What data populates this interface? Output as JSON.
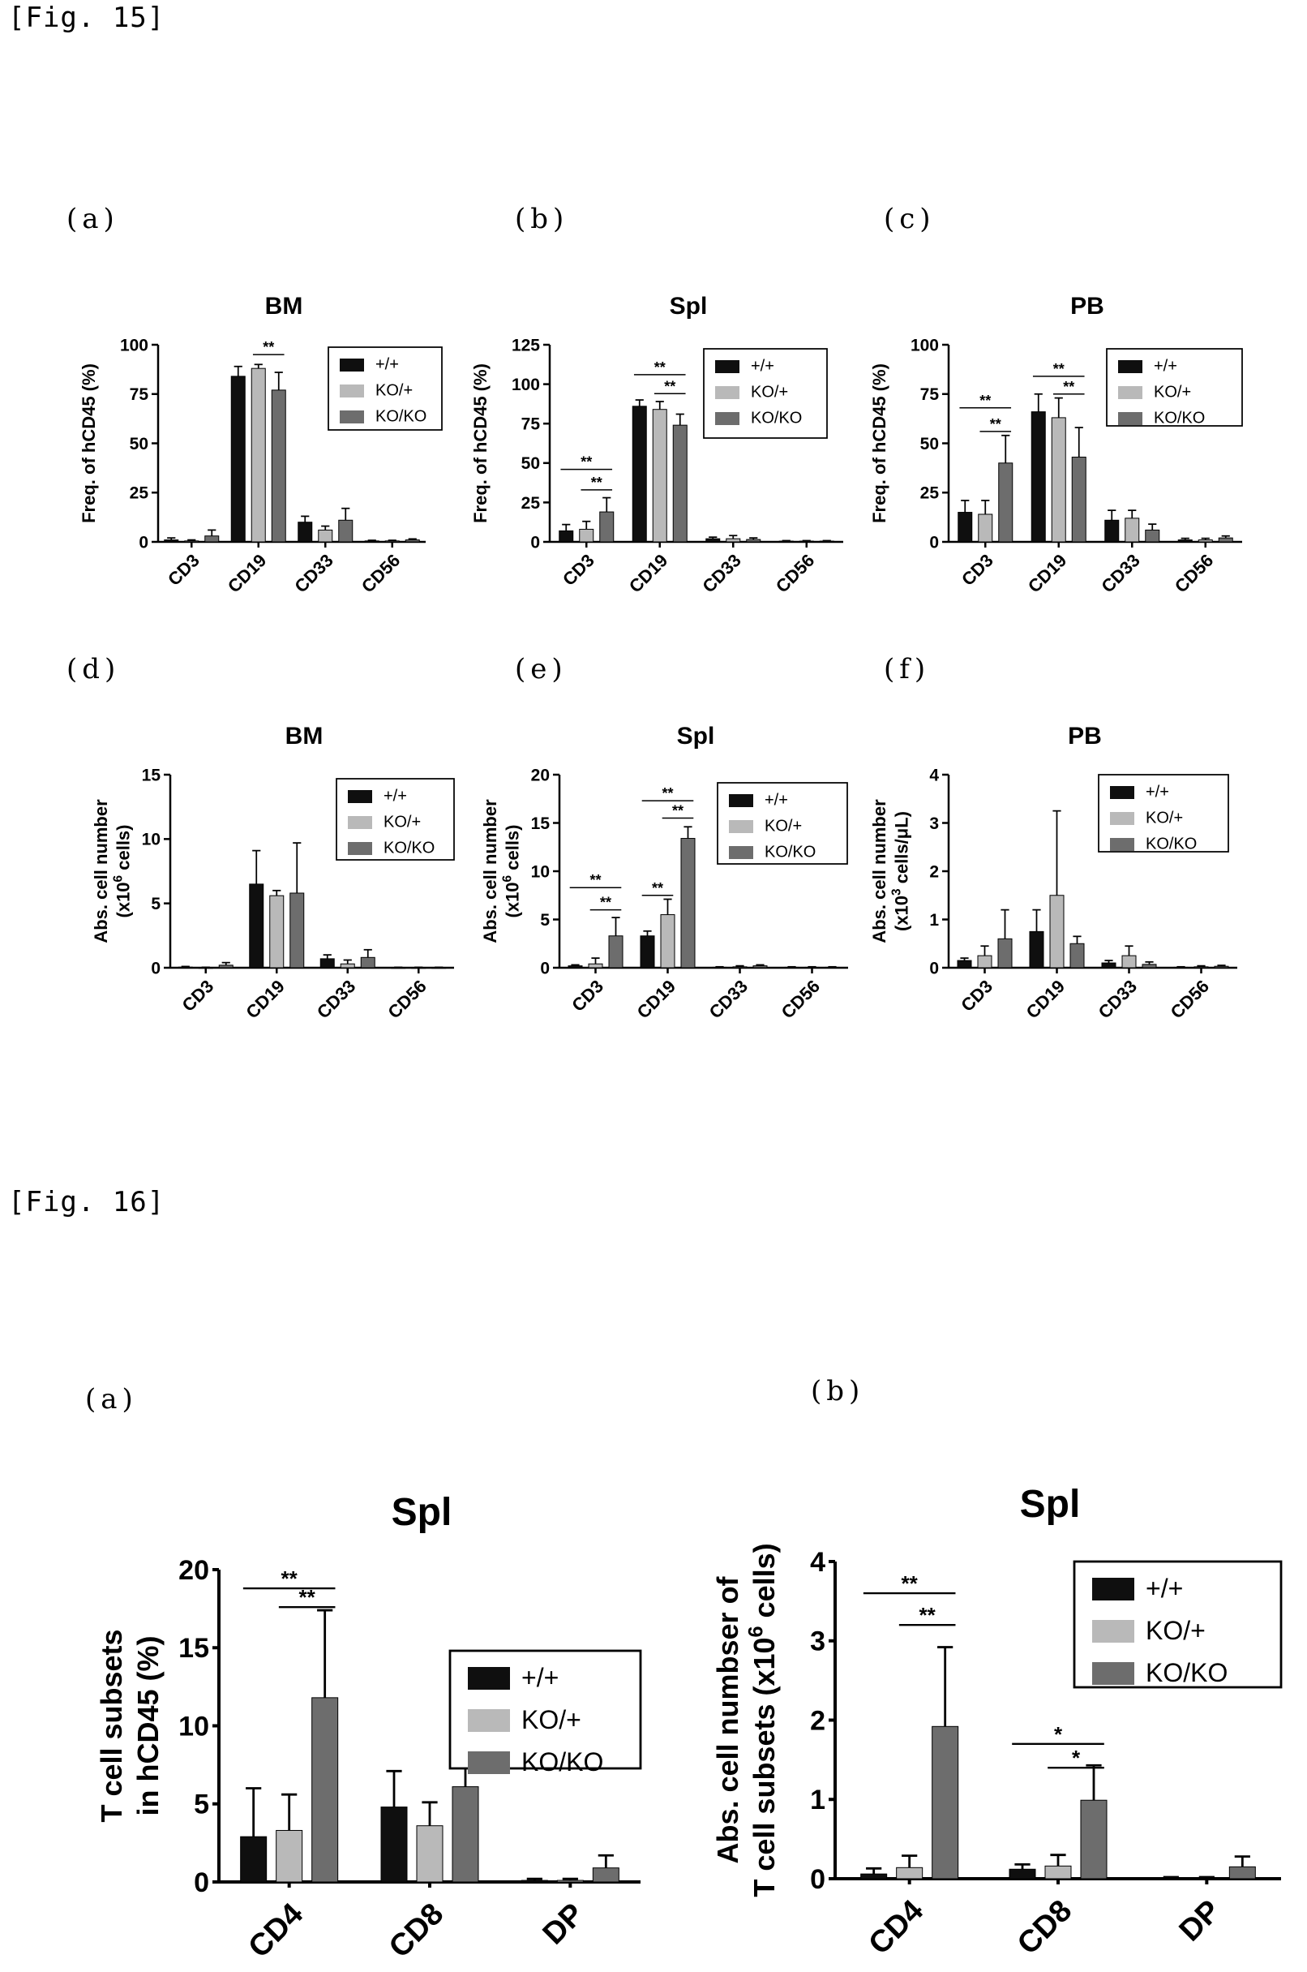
{
  "figures": [
    {
      "label": "[Fig. 15]",
      "panels": [
        {
          "letter": "(a)"
        },
        {
          "letter": "(b)"
        },
        {
          "letter": "(c)"
        },
        {
          "letter": "(d)"
        },
        {
          "letter": "(e)"
        },
        {
          "letter": "(f)"
        }
      ]
    },
    {
      "label": "[Fig. 16]",
      "panels": [
        {
          "letter": "(a)"
        },
        {
          "letter": "(b)"
        }
      ]
    }
  ],
  "colors": {
    "wt": "#0f0f0f",
    "het": "#b9b9b9",
    "ko": "#6d6d6d"
  },
  "chart_data": [
    {
      "type": "bar",
      "title": "BM",
      "ylabel": "Freq. of hCD45 (%)",
      "categories": [
        "CD3",
        "CD19",
        "CD33",
        "CD56"
      ],
      "ylim": [
        0,
        100
      ],
      "yticks": [
        "0",
        "25",
        "50",
        "75",
        "100"
      ],
      "legend": [
        "+/+",
        "KO/+",
        "KO/KO"
      ],
      "legend_position": "top-right",
      "series": [
        {
          "name": "+/+",
          "values": [
            1,
            84,
            10,
            0.5
          ],
          "errors": [
            1,
            5,
            3,
            0.3
          ]
        },
        {
          "name": "KO/+",
          "values": [
            0.5,
            88,
            6,
            0.5
          ],
          "errors": [
            0.5,
            2,
            2,
            0.3
          ]
        },
        {
          "name": "KO/KO",
          "values": [
            3,
            77,
            11,
            1
          ],
          "errors": [
            3,
            9,
            6,
            0.5
          ]
        }
      ],
      "significance": [
        {
          "category": 1,
          "from": 1,
          "to": 2,
          "y": 95,
          "label": "**"
        }
      ]
    },
    {
      "type": "bar",
      "title": "Spl",
      "ylabel": "Freq. of hCD45 (%)",
      "categories": [
        "CD3",
        "CD19",
        "CD33",
        "CD56"
      ],
      "ylim": [
        0,
        125
      ],
      "yticks": [
        "0",
        "25",
        "50",
        "75",
        "100",
        "125"
      ],
      "legend": [
        "+/+",
        "KO/+",
        "KO/KO"
      ],
      "legend_position": "top-right",
      "series": [
        {
          "name": "+/+",
          "values": [
            7,
            86,
            2,
            0.5
          ],
          "errors": [
            4,
            4,
            1,
            0.3
          ]
        },
        {
          "name": "KO/+",
          "values": [
            8,
            84,
            2,
            0.5
          ],
          "errors": [
            5,
            5,
            2,
            0.3
          ]
        },
        {
          "name": "KO/KO",
          "values": [
            19,
            74,
            1.5,
            0.5
          ],
          "errors": [
            9,
            7,
            1,
            0.3
          ]
        }
      ],
      "significance": [
        {
          "category": 0,
          "from": 0,
          "to": 2,
          "y": 46,
          "label": "**"
        },
        {
          "category": 0,
          "from": 1,
          "to": 2,
          "y": 33,
          "label": "**"
        },
        {
          "category": 1,
          "from": 0,
          "to": 2,
          "y": 106,
          "label": "**"
        },
        {
          "category": 1,
          "from": 1,
          "to": 2,
          "y": 94,
          "label": "**"
        }
      ]
    },
    {
      "type": "bar",
      "title": "PB",
      "ylabel": "Freq. of hCD45 (%)",
      "categories": [
        "CD3",
        "CD19",
        "CD33",
        "CD56"
      ],
      "ylim": [
        0,
        100
      ],
      "yticks": [
        "0",
        "25",
        "50",
        "75",
        "100"
      ],
      "legend": [
        "+/+",
        "KO/+",
        "KO/KO"
      ],
      "legend_position": "top-right",
      "series": [
        {
          "name": "+/+",
          "values": [
            15,
            66,
            11,
            1
          ],
          "errors": [
            6,
            9,
            5,
            0.8
          ]
        },
        {
          "name": "KO/+",
          "values": [
            14,
            63,
            12,
            1
          ],
          "errors": [
            7,
            10,
            4,
            0.8
          ]
        },
        {
          "name": "KO/KO",
          "values": [
            40,
            43,
            6,
            2
          ],
          "errors": [
            14,
            15,
            3,
            1
          ]
        }
      ],
      "significance": [
        {
          "category": 0,
          "from": 0,
          "to": 2,
          "y": 68,
          "label": "**"
        },
        {
          "category": 0,
          "from": 1,
          "to": 2,
          "y": 56,
          "label": "**"
        },
        {
          "category": 1,
          "from": 0,
          "to": 2,
          "y": 84,
          "label": "**"
        },
        {
          "category": 1,
          "from": 1,
          "to": 2,
          "y": 75,
          "label": "**"
        }
      ]
    },
    {
      "type": "bar",
      "title": "BM",
      "ylabel_lines": [
        "Abs. cell number",
        "(x10",
        "6",
        " cells)"
      ],
      "categories": [
        "CD3",
        "CD19",
        "CD33",
        "CD56"
      ],
      "ylim": [
        0,
        15
      ],
      "yticks": [
        "0",
        "5",
        "10",
        "15"
      ],
      "legend": [
        "+/+",
        "KO/+",
        "KO/KO"
      ],
      "legend_position": "top-right",
      "series": [
        {
          "name": "+/+",
          "values": [
            0.05,
            6.5,
            0.7,
            0.02
          ],
          "errors": [
            0.05,
            2.6,
            0.3,
            0.02
          ]
        },
        {
          "name": "KO/+",
          "values": [
            0.02,
            5.6,
            0.3,
            0.02
          ],
          "errors": [
            0.02,
            0.4,
            0.3,
            0.02
          ]
        },
        {
          "name": "KO/KO",
          "values": [
            0.2,
            5.8,
            0.8,
            0.02
          ],
          "errors": [
            0.2,
            3.9,
            0.6,
            0.02
          ]
        }
      ],
      "significance": []
    },
    {
      "type": "bar",
      "title": "Spl",
      "ylabel_lines": [
        "Abs. cell number",
        "(x10",
        "6",
        " cells)"
      ],
      "categories": [
        "CD3",
        "CD19",
        "CD33",
        "CD56"
      ],
      "ylim": [
        0,
        20
      ],
      "yticks": [
        "0",
        "5",
        "10",
        "15",
        "20"
      ],
      "legend": [
        "+/+",
        "KO/+",
        "KO/KO"
      ],
      "legend_position": "top-right",
      "series": [
        {
          "name": "+/+",
          "values": [
            0.2,
            3.3,
            0.05,
            0.05
          ],
          "errors": [
            0.1,
            0.5,
            0.05,
            0.05
          ]
        },
        {
          "name": "KO/+",
          "values": [
            0.4,
            5.5,
            0.1,
            0.05
          ],
          "errors": [
            0.6,
            1.6,
            0.1,
            0.05
          ]
        },
        {
          "name": "KO/KO",
          "values": [
            3.3,
            13.4,
            0.2,
            0.05
          ],
          "errors": [
            1.9,
            1.2,
            0.1,
            0.05
          ]
        }
      ],
      "significance": [
        {
          "category": 0,
          "from": 0,
          "to": 2,
          "y": 8.3,
          "label": "**"
        },
        {
          "category": 0,
          "from": 1,
          "to": 2,
          "y": 6.0,
          "label": "**"
        },
        {
          "category": 1,
          "from": 0,
          "to": 2,
          "y": 17.3,
          "label": "**"
        },
        {
          "category": 1,
          "from": 1,
          "to": 2,
          "y": 15.5,
          "label": "**"
        },
        {
          "category": 1,
          "from": 0,
          "to": 1,
          "y": 7.5,
          "label": "**"
        }
      ]
    },
    {
      "type": "bar",
      "title": "PB",
      "ylabel_lines": [
        "Abs. cell number",
        "(x10",
        "3",
        " cells/μL)"
      ],
      "categories": [
        "CD3",
        "CD19",
        "CD33",
        "CD56"
      ],
      "ylim": [
        0,
        4
      ],
      "yticks": [
        "0",
        "1",
        "2",
        "3",
        "4"
      ],
      "legend": [
        "+/+",
        "KO/+",
        "KO/KO"
      ],
      "legend_position": "top-right",
      "series": [
        {
          "name": "+/+",
          "values": [
            0.15,
            0.75,
            0.1,
            0.01
          ],
          "errors": [
            0.05,
            0.45,
            0.05,
            0.01
          ]
        },
        {
          "name": "KO/+",
          "values": [
            0.25,
            1.5,
            0.25,
            0.02
          ],
          "errors": [
            0.2,
            1.75,
            0.2,
            0.02
          ]
        },
        {
          "name": "KO/KO",
          "values": [
            0.6,
            0.5,
            0.07,
            0.03
          ],
          "errors": [
            0.6,
            0.15,
            0.05,
            0.02
          ]
        }
      ],
      "significance": []
    },
    {
      "type": "bar",
      "title": "Spl",
      "ylabel_lines": [
        "T cell subsets",
        "in hCD45 (%)"
      ],
      "categories": [
        "CD4",
        "CD8",
        "DP"
      ],
      "ylim": [
        0,
        20
      ],
      "yticks": [
        "0",
        "5",
        "10",
        "15",
        "20"
      ],
      "legend": [
        "+/+",
        "KO/+",
        "KO/KO"
      ],
      "legend_position": "top-right",
      "series": [
        {
          "name": "+/+",
          "values": [
            2.9,
            4.8,
            0.1
          ],
          "errors": [
            3.1,
            2.3,
            0.1
          ]
        },
        {
          "name": "KO/+",
          "values": [
            3.3,
            3.6,
            0.1
          ],
          "errors": [
            2.3,
            1.5,
            0.1
          ]
        },
        {
          "name": "KO/KO",
          "values": [
            11.8,
            6.1,
            0.9
          ],
          "errors": [
            5.6,
            2.3,
            0.8
          ]
        }
      ],
      "significance": [
        {
          "category": 0,
          "from": 0,
          "to": 2,
          "y": 18.8,
          "label": "**"
        },
        {
          "category": 0,
          "from": 1,
          "to": 2,
          "y": 17.6,
          "label": "**"
        }
      ]
    },
    {
      "type": "bar",
      "title": "Spl",
      "ylabel_lines": [
        "Abs. cell numbser of",
        "T cell subsets (x10",
        "6",
        " cells)"
      ],
      "categories": [
        "CD4",
        "CD8",
        "DP"
      ],
      "ylim": [
        0,
        4
      ],
      "yticks": [
        "0",
        "1",
        "2",
        "3",
        "4"
      ],
      "legend": [
        "+/+",
        "KO/+",
        "KO/KO"
      ],
      "legend_position": "top-right",
      "series": [
        {
          "name": "+/+",
          "values": [
            0.06,
            0.12,
            0.01
          ],
          "errors": [
            0.07,
            0.06,
            0.01
          ]
        },
        {
          "name": "KO/+",
          "values": [
            0.14,
            0.16,
            0.01
          ],
          "errors": [
            0.15,
            0.14,
            0.01
          ]
        },
        {
          "name": "KO/KO",
          "values": [
            1.92,
            0.99,
            0.15
          ],
          "errors": [
            1.0,
            0.44,
            0.13
          ]
        }
      ],
      "significance": [
        {
          "category": 0,
          "from": 0,
          "to": 2,
          "y": 3.6,
          "label": "**"
        },
        {
          "category": 0,
          "from": 1,
          "to": 2,
          "y": 3.2,
          "label": "**"
        },
        {
          "category": 1,
          "from": 0,
          "to": 2,
          "y": 1.7,
          "label": "*"
        },
        {
          "category": 1,
          "from": 1,
          "to": 2,
          "y": 1.4,
          "label": "*"
        }
      ]
    }
  ]
}
